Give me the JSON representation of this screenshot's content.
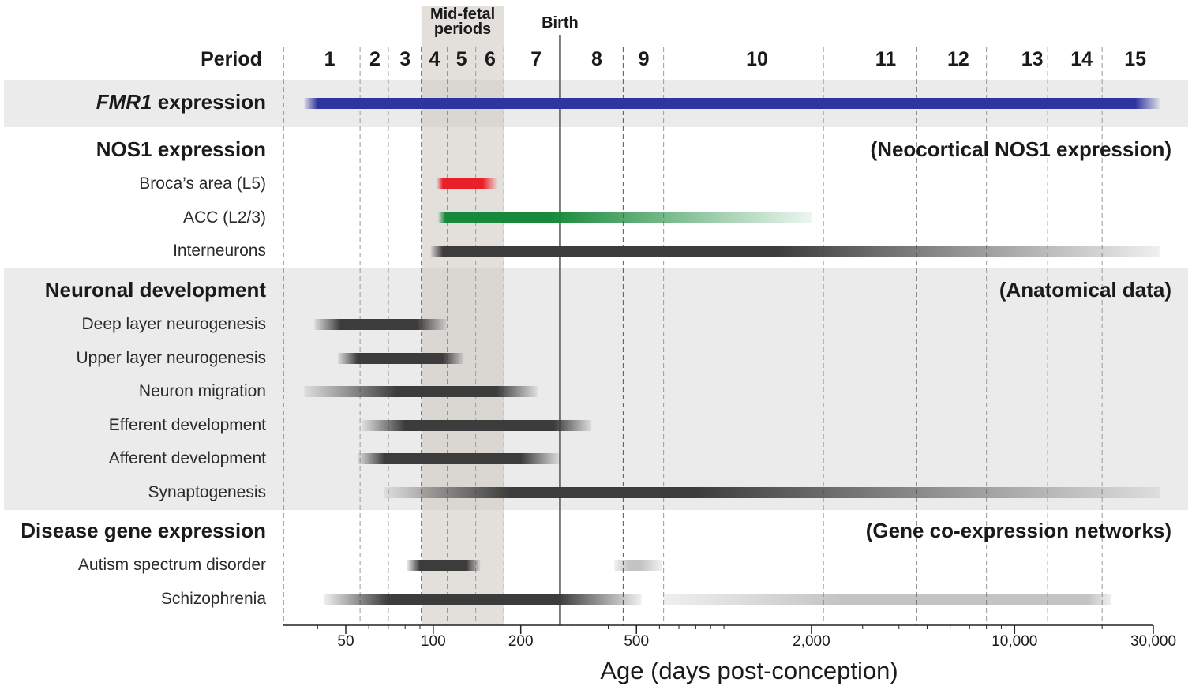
{
  "chart_data": {
    "type": "timeline",
    "x_scale": "log",
    "xlabel": "Age (days post-conception)",
    "xlim": [
      33,
      32000
    ],
    "x_ticks": [
      {
        "value": 50,
        "label": "50"
      },
      {
        "value": 100,
        "label": "100"
      },
      {
        "value": 200,
        "label": "200"
      },
      {
        "value": 500,
        "label": "500"
      },
      {
        "value": 2000,
        "label": "2,000"
      },
      {
        "value": 10000,
        "label": "10,000"
      },
      {
        "value": 30000,
        "label": "30,000"
      }
    ],
    "period_header": "Period",
    "period_boundaries": [
      56,
      70,
      91,
      112,
      140,
      175,
      273,
      450,
      620,
      2200,
      4600,
      8000,
      13000,
      20000
    ],
    "periods": [
      {
        "label": "1",
        "center": 44
      },
      {
        "label": "2",
        "center": 63
      },
      {
        "label": "3",
        "center": 80
      },
      {
        "label": "4",
        "center": 101
      },
      {
        "label": "5",
        "center": 125
      },
      {
        "label": "6",
        "center": 157
      },
      {
        "label": "7",
        "center": 226
      },
      {
        "label": "8",
        "center": 365
      },
      {
        "label": "9",
        "center": 530
      },
      {
        "label": "10",
        "center": 1300
      },
      {
        "label": "11",
        "center": 3600
      },
      {
        "label": "12",
        "center": 6400
      },
      {
        "label": "13",
        "center": 11500
      },
      {
        "label": "14",
        "center": 17000
      },
      {
        "label": "15",
        "center": 26000
      }
    ],
    "mid_fetal": {
      "label_line1": "Mid-fetal",
      "label_line2": "periods",
      "start": 91,
      "end": 175
    },
    "birth": {
      "label": "Birth",
      "value": 273
    },
    "sections": [
      {
        "title_italic": "FMR1",
        "title_rest": " expression",
        "note": "",
        "shaded": true,
        "rows": [
          {
            "label": "",
            "color": "#2e35a1",
            "segments": [
              {
                "start": 36,
                "end": 31500,
                "fade_in": 40,
                "fade_out": 26000,
                "peak_opacity": 1
              }
            ]
          }
        ]
      },
      {
        "title_italic": "",
        "title_rest": "NOS1 expression",
        "note": "(Neocortical NOS1 expression)",
        "shaded": false,
        "rows": [
          {
            "label": "Broca’s area (L5)",
            "color": "#e8202a",
            "segments": [
              {
                "start": 103,
                "end": 165,
                "fade_in": 108,
                "fade_out": 148,
                "peak_opacity": 1
              }
            ]
          },
          {
            "label": "ACC (L2/3)",
            "color": "#17893a",
            "segments": [
              {
                "start": 104,
                "end": 2000,
                "fade_in": 110,
                "fade_out": 250,
                "peak_opacity": 1
              }
            ]
          },
          {
            "label": "Interneurons",
            "color": "#3c3c3c",
            "segments": [
              {
                "start": 98,
                "end": 31500,
                "fade_in": 108,
                "fade_out": 1500,
                "peak_opacity": 1
              }
            ]
          }
        ]
      },
      {
        "title_italic": "",
        "title_rest": "Neuronal development",
        "note": "(Anatomical data)",
        "shaded": true,
        "rows": [
          {
            "label": "Deep layer neurogenesis",
            "color": "#3c3c3c",
            "segments": [
              {
                "start": 39,
                "end": 111,
                "fade_in": 48,
                "fade_out": 88,
                "peak_opacity": 1
              }
            ]
          },
          {
            "label": "Upper layer neurogenesis",
            "color": "#3c3c3c",
            "segments": [
              {
                "start": 47,
                "end": 127,
                "fade_in": 55,
                "fade_out": 108,
                "peak_opacity": 1
              }
            ]
          },
          {
            "label": "Neuron migration",
            "color": "#3c3c3c",
            "segments": [
              {
                "start": 36,
                "end": 228,
                "fade_in": 75,
                "fade_out": 165,
                "peak_opacity": 1
              }
            ]
          },
          {
            "label": "Efferent development",
            "color": "#3c3c3c",
            "segments": [
              {
                "start": 57,
                "end": 350,
                "fade_in": 80,
                "fade_out": 260,
                "peak_opacity": 1
              }
            ]
          },
          {
            "label": "Afferent development",
            "color": "#3c3c3c",
            "segments": [
              {
                "start": 55,
                "end": 273,
                "fade_in": 68,
                "fade_out": 200,
                "peak_opacity": 1
              }
            ]
          },
          {
            "label": "Synaptogenesis",
            "color": "#3c3c3c",
            "segments": [
              {
                "start": 68,
                "end": 31500,
                "fade_in": 185,
                "fade_out": 780,
                "peak_opacity": 1
              }
            ]
          }
        ]
      },
      {
        "title_italic": "",
        "title_rest": "Disease gene expression",
        "note": "(Gene co-expression networks)",
        "shaded": false,
        "rows": [
          {
            "label": "Autism spectrum disorder",
            "color": "#3c3c3c",
            "segments": [
              {
                "start": 81,
                "end": 145,
                "fade_in": 90,
                "fade_out": 130,
                "peak_opacity": 1
              },
              {
                "start": 420,
                "end": 610,
                "fade_in": 470,
                "fade_out": 520,
                "peak_opacity": 0.3
              }
            ]
          },
          {
            "label": "Schizophrenia",
            "color": "#3c3c3c",
            "segments": [
              {
                "start": 42,
                "end": 520,
                "fade_in": 70,
                "fade_out": 270,
                "peak_opacity": 1
              },
              {
                "start": 620,
                "end": 21500,
                "fade_in": 2500,
                "fade_out": 18000,
                "peak_opacity": 0.3
              }
            ]
          }
        ]
      }
    ]
  }
}
